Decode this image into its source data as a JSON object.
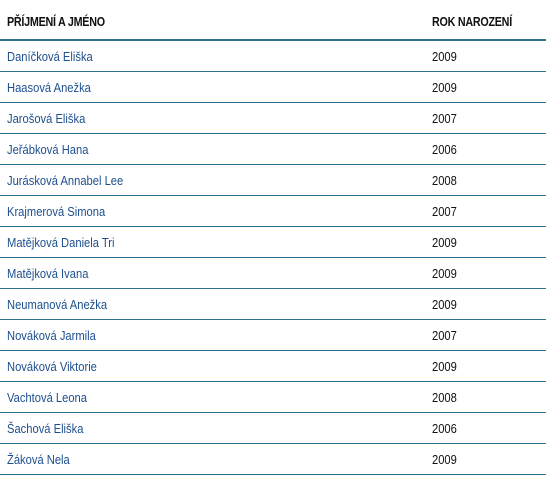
{
  "header": {
    "name_label": "PŘÍJMENÍ A JMÉNO",
    "year_label": "ROK NAROZENÍ"
  },
  "rows": [
    {
      "name": "Daníčková Eliška",
      "year": "2009"
    },
    {
      "name": "Haasová Anežka",
      "year": "2009"
    },
    {
      "name": "Jarošová Eliška",
      "year": "2007"
    },
    {
      "name": "Jeřábková Hana",
      "year": "2006"
    },
    {
      "name": "Jurásková Annabel Lee",
      "year": "2008"
    },
    {
      "name": "Krajmerová Simona",
      "year": "2007"
    },
    {
      "name": "Matějková Daniela Tri",
      "year": "2009"
    },
    {
      "name": "Matějková Ivana",
      "year": "2009"
    },
    {
      "name": "Neumanová Anežka",
      "year": "2009"
    },
    {
      "name": "Nováková Jarmila",
      "year": "2007"
    },
    {
      "name": "Nováková Viktorie",
      "year": "2009"
    },
    {
      "name": "Vachtová Leona",
      "year": "2008"
    },
    {
      "name": "Šachová Eliška",
      "year": "2006"
    },
    {
      "name": "Žáková Nela",
      "year": "2009"
    }
  ],
  "colors": {
    "name_link": "#1d4f8f",
    "divider": "#2c6f8e",
    "text": "#111111"
  }
}
